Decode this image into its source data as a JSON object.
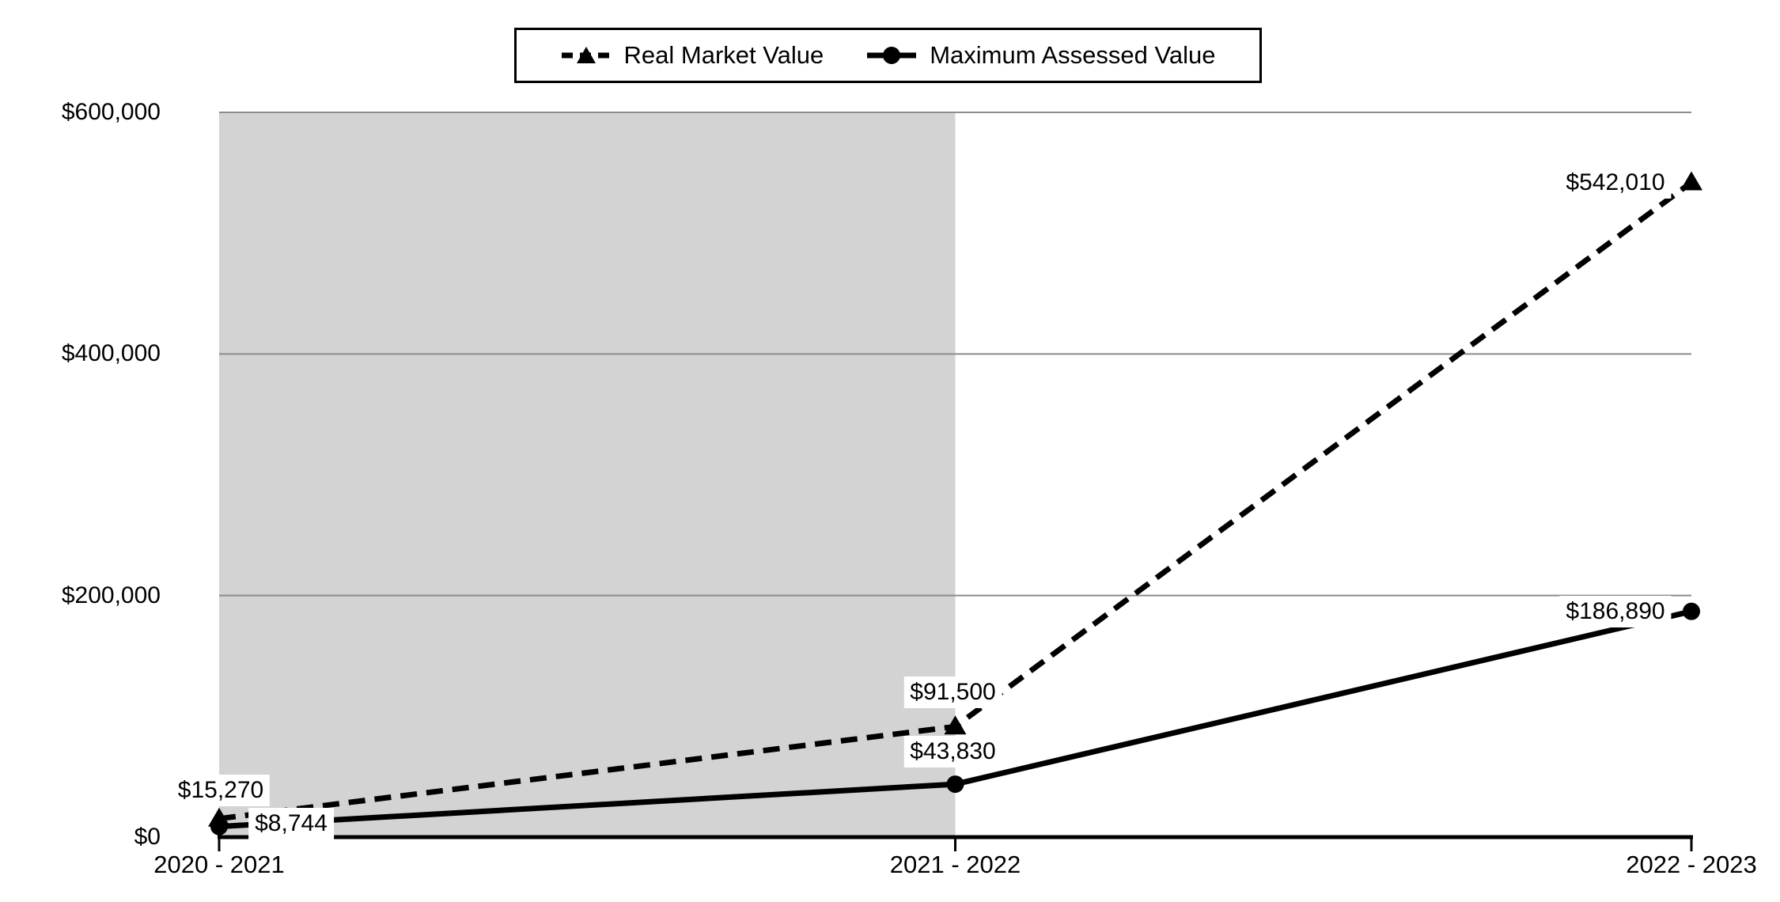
{
  "chart_data": {
    "type": "line",
    "title": "",
    "xlabel": "",
    "ylabel": "",
    "categories": [
      "2020 - 2021",
      "2021 - 2022",
      "2022 - 2023"
    ],
    "series": [
      {
        "name": "Real Market Value",
        "line_style": "dashed",
        "marker": "triangle",
        "values": [
          15270,
          91500,
          542010
        ],
        "point_labels": [
          "$15,270",
          "$91,500",
          "$542,010"
        ]
      },
      {
        "name": "Maximum Assessed Value",
        "line_style": "solid",
        "marker": "circle",
        "values": [
          8744,
          43830,
          186890
        ],
        "point_labels": [
          "$8,744",
          "$43,830",
          "$186,890"
        ]
      }
    ],
    "y_ticks": [
      {
        "value": 0,
        "label": "$0"
      },
      {
        "value": 200000,
        "label": "$200,000"
      },
      {
        "value": 400000,
        "label": "$400,000"
      },
      {
        "value": 600000,
        "label": "$600,000"
      }
    ],
    "ylim": [
      0,
      600000
    ],
    "grid": true,
    "legend_position": "top-center",
    "highlight_band": {
      "from_category": "2020 - 2021",
      "to_category": "2021 - 2022",
      "color": "#d3d3d3"
    },
    "colors": {
      "line": "#000000",
      "grid": "#8c8c8c",
      "axis": "#000000",
      "band": "#d3d3d3",
      "background": "#ffffff",
      "label_bg": "#ffffff"
    }
  }
}
